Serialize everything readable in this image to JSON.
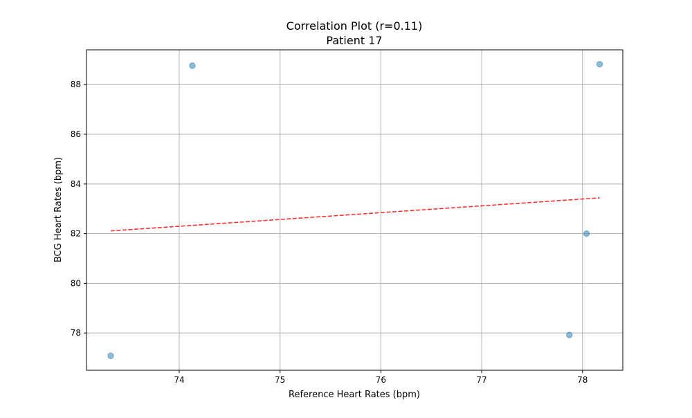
{
  "chart_data": {
    "type": "scatter",
    "title": "Correlation Plot (r=0.11)",
    "subtitle": "Patient 17",
    "xlabel": "Reference Heart Rates (bpm)",
    "ylabel": "BCG Heart Rates (bpm)",
    "xlim": [
      73.08,
      78.4
    ],
    "ylim": [
      76.5,
      89.4
    ],
    "xticks": [
      74,
      75,
      76,
      77,
      78
    ],
    "yticks": [
      78,
      80,
      82,
      84,
      86,
      88
    ],
    "grid": true,
    "points": [
      {
        "x": 73.32,
        "y": 77.08
      },
      {
        "x": 74.13,
        "y": 88.76
      },
      {
        "x": 77.87,
        "y": 77.92
      },
      {
        "x": 78.04,
        "y": 82.0
      },
      {
        "x": 78.17,
        "y": 88.82
      }
    ],
    "trendline": {
      "x": [
        73.32,
        78.17
      ],
      "y": [
        82.11,
        83.44
      ]
    },
    "colors": {
      "points": "#1f77b4",
      "trendline": "#ff0000",
      "grid": "#b0b0b0"
    }
  }
}
